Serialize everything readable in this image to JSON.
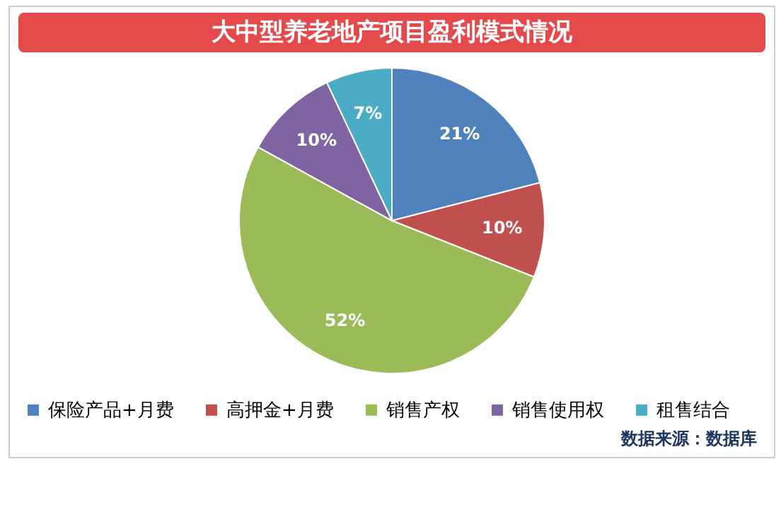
{
  "chart_data": {
    "type": "pie",
    "title": "大中型养老地产项目盈利模式情况",
    "categories": [
      "保险产品+月费",
      "高押金+月费",
      "销售产权",
      "销售使用权",
      "租售结合"
    ],
    "values": [
      21,
      10,
      52,
      10,
      7
    ],
    "value_labels": [
      "21%",
      "10%",
      "52%",
      "10%",
      "7%"
    ],
    "colors": [
      "#4f81bd",
      "#c0504d",
      "#9bbb59",
      "#8064a2",
      "#4bacc6"
    ],
    "legend": "bottom",
    "annotations": [
      "数据来源：数据库"
    ]
  }
}
